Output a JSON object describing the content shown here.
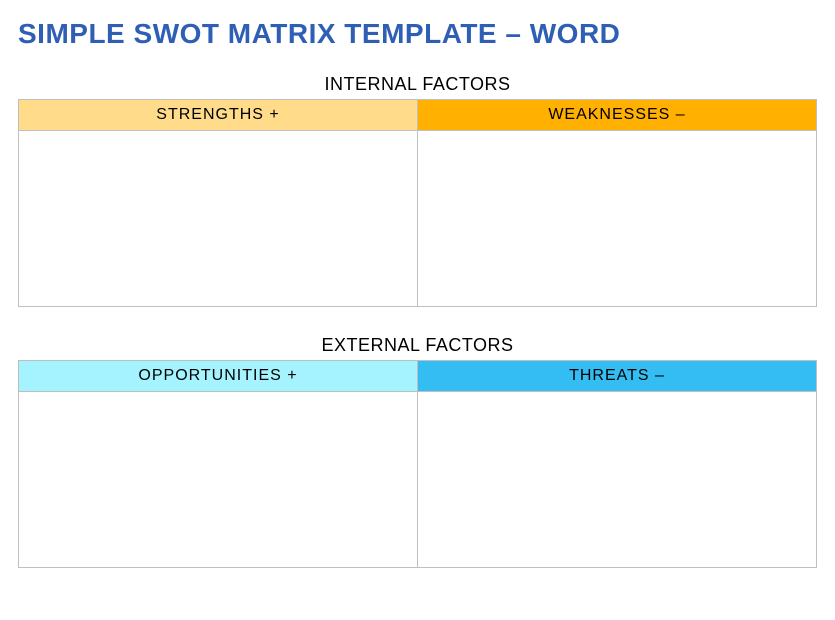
{
  "title": {
    "text": "SIMPLE SWOT MATRIX TEMPLATE  –  WORD",
    "color": "#2f5fb5"
  },
  "sections": {
    "internal": {
      "label": "INTERNAL FACTORS",
      "left": {
        "header": "STRENGTHS  +",
        "header_bg": "#ffdb8a",
        "cell_bg": "#ffffff"
      },
      "right": {
        "header": "WEAKNESSES  –",
        "header_bg": "#ffb000",
        "cell_bg": "#ffffff"
      }
    },
    "external": {
      "label": "EXTERNAL FACTORS",
      "left": {
        "header": "OPPORTUNITIES  +",
        "header_bg": "#a5f3ff",
        "cell_bg": "#ffffff"
      },
      "right": {
        "header": "THREATS  –",
        "header_bg": "#33bdf2",
        "cell_bg": "#ffffff"
      }
    }
  },
  "border_color": "#bfbfbf"
}
